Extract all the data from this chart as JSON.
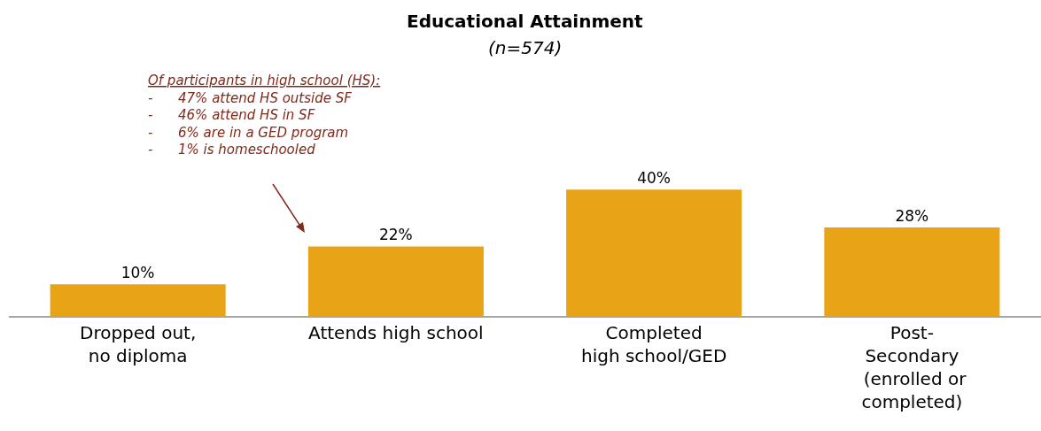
{
  "chart_data": {
    "type": "bar",
    "title": "Educational Attainment",
    "subtitle": "(n=574)",
    "categories": [
      "Dropped out,\nno diploma",
      "Attends high school",
      "Completed\nhigh school/GED",
      "Post-\nSecondary\n (enrolled or\ncompleted)"
    ],
    "values": [
      10,
      22,
      40,
      28
    ],
    "value_labels": [
      "10%",
      "22%",
      "40%",
      "28%"
    ],
    "color": "#e8a317",
    "annotations": [
      {
        "text": "Of participants in high school (HS):\n-      47% attend HS outside SF\n-      46% attend HS in SF\n-      6% are in a GED program\n-      1% is homeschooled"
      }
    ]
  }
}
